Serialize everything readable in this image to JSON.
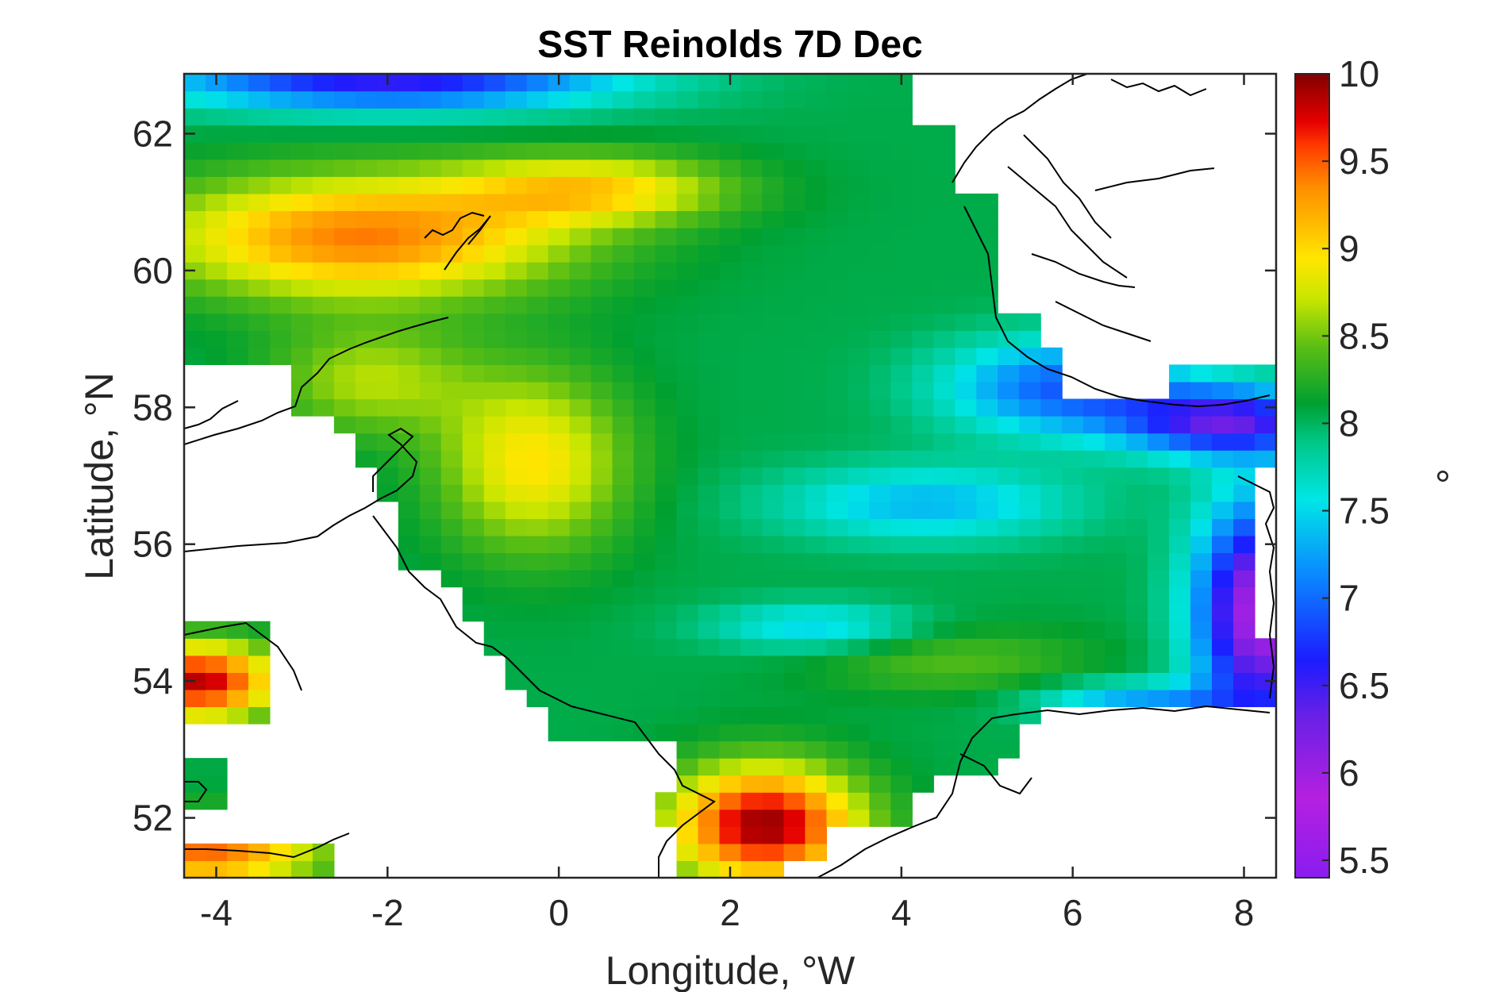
{
  "chart_data": {
    "type": "heatmap",
    "title": "SST Reinolds 7D Dec",
    "xlabel": "Longitude, °W",
    "ylabel": "Latitude, °N",
    "xlim": [
      -4.375,
      8.375
    ],
    "ylim": [
      51.125,
      62.875
    ],
    "x_ticks": [
      -4,
      -2,
      0,
      2,
      4,
      6,
      8
    ],
    "x_tick_labels": [
      "-4",
      "-2",
      "0",
      "2",
      "4",
      "6",
      "8"
    ],
    "y_ticks": [
      52,
      54,
      56,
      58,
      60,
      62
    ],
    "y_tick_labels": [
      "52",
      "54",
      "56",
      "58",
      "60",
      "62"
    ],
    "colorbar": {
      "label": "°",
      "range": [
        5.4,
        10.0
      ],
      "ticks": [
        5.5,
        6,
        6.5,
        7,
        7.5,
        8,
        8.5,
        9,
        9.5,
        10
      ],
      "tick_labels": [
        "5.5",
        "6",
        "6.5",
        "7",
        "7.5",
        "8",
        "8.5",
        "9",
        "9.5",
        "10"
      ],
      "colormap": "jet-like"
    },
    "grid_resolution_deg": 0.25,
    "grid": false,
    "approximate_field_features": [
      {
        "description": "warm tongue",
        "lon": [
          -4.3,
          1.8
        ],
        "lat": [
          59.5,
          61.6
        ],
        "value": 9.4
      },
      {
        "description": "warm west edge",
        "lon": [
          -4.3,
          -3.0
        ],
        "lat": [
          58.5,
          60.3
        ],
        "value": 9.6
      },
      {
        "description": "warm central",
        "lon": [
          -0.9,
          0.5
        ],
        "lat": [
          56.3,
          57.8
        ],
        "value": 9.0
      },
      {
        "description": "warm southern bight",
        "lon": [
          1.8,
          3.5
        ],
        "lat": [
          51.2,
          52.8
        ],
        "value": 9.9
      },
      {
        "description": "irish sea",
        "lon": [
          -4.3,
          -3.4
        ],
        "lat": [
          53.5,
          54.6
        ],
        "value": 9.8
      },
      {
        "description": "cold north edge",
        "lon": [
          -4.3,
          0.0
        ],
        "lat": [
          62.4,
          62.9
        ],
        "value": 6.8
      },
      {
        "description": "cool central basin",
        "lon": [
          3.0,
          5.5
        ],
        "lat": [
          56.3,
          57.2
        ],
        "value": 7.3
      },
      {
        "description": "cold german bight",
        "lon": [
          7.4,
          8.3
        ],
        "lat": [
          53.6,
          56.4
        ],
        "value": 6.0
      },
      {
        "description": "cold skagerrak",
        "lon": [
          6.5,
          8.3
        ],
        "lat": [
          57.5,
          58.3
        ],
        "value": 6.8
      }
    ]
  }
}
